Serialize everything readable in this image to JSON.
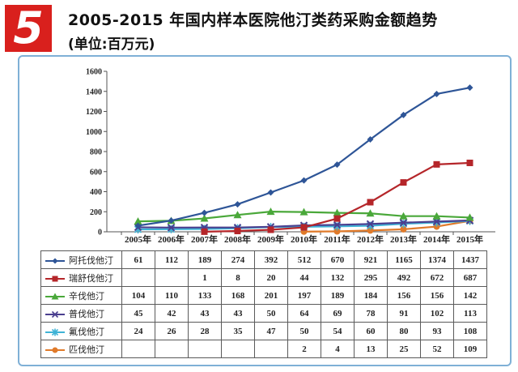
{
  "badge": "5",
  "header": {
    "title": "2005-2015 年国内样本医院他汀类药采购金额趋势",
    "subtitle": "(单位:百万元)"
  },
  "chart_data": {
    "type": "line",
    "title": "2005-2015 年国内样本医院他汀类药采购金额趋势",
    "unit": "百万元",
    "categories": [
      "2005年",
      "2006年",
      "2007年",
      "2008年",
      "2009年",
      "2010年",
      "2011年",
      "2012年",
      "2013年",
      "2014年",
      "2015年"
    ],
    "ylim": [
      0,
      1600
    ],
    "yticks": [
      0,
      200,
      400,
      600,
      800,
      1000,
      1200,
      1400,
      1600
    ],
    "grid": false,
    "legend": "table-below",
    "series": [
      {
        "name": "阿托伐他汀",
        "color": "#2e5597",
        "marker": "diamond",
        "values": [
          61,
          112,
          189,
          274,
          392,
          512,
          670,
          921,
          1165,
          1374,
          1437
        ]
      },
      {
        "name": "瑞舒伐他汀",
        "color": "#b5262a",
        "marker": "square",
        "values": [
          null,
          null,
          1,
          8,
          20,
          44,
          132,
          295,
          492,
          672,
          687
        ]
      },
      {
        "name": "辛伐他汀",
        "color": "#4aa83a",
        "marker": "triangle",
        "values": [
          104,
          110,
          133,
          168,
          201,
          197,
          189,
          184,
          156,
          156,
          142
        ]
      },
      {
        "name": "普伐他汀",
        "color": "#4a3f8f",
        "marker": "x",
        "values": [
          45,
          42,
          43,
          43,
          50,
          64,
          69,
          78,
          91,
          102,
          113
        ]
      },
      {
        "name": "氟伐他汀",
        "color": "#3fb3d6",
        "marker": "star",
        "values": [
          24,
          26,
          28,
          35,
          47,
          50,
          54,
          60,
          80,
          93,
          108
        ]
      },
      {
        "name": "匹伐他汀",
        "color": "#e07a2a",
        "marker": "circle",
        "values": [
          null,
          null,
          null,
          null,
          null,
          2,
          4,
          13,
          25,
          52,
          109
        ]
      }
    ]
  }
}
